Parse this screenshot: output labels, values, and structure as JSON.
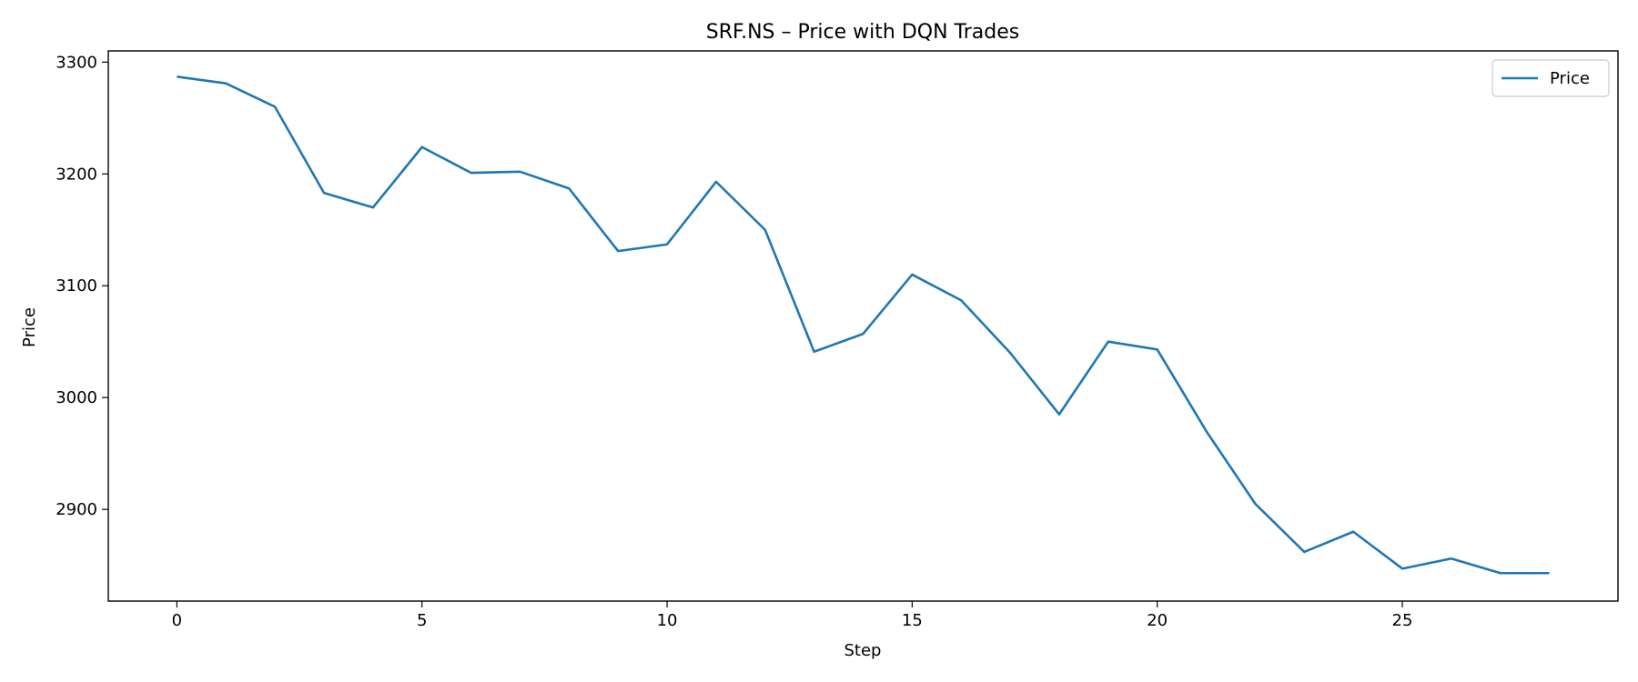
{
  "chart_data": {
    "type": "line",
    "title": "SRF.NS – Price with DQN Trades",
    "xlabel": "Step",
    "ylabel": "Price",
    "xlim": [
      -1.4,
      29.4
    ],
    "ylim": [
      2818,
      3310
    ],
    "xticks": [
      0,
      5,
      10,
      15,
      20,
      25
    ],
    "yticks": [
      2900,
      3000,
      3100,
      3200,
      3300
    ],
    "grid": false,
    "legend_position": "top-right",
    "colors": {
      "Price": "#1f77b4"
    },
    "series": [
      {
        "name": "Price",
        "x": [
          0,
          1,
          2,
          3,
          4,
          5,
          6,
          7,
          8,
          9,
          10,
          11,
          12,
          13,
          14,
          15,
          16,
          17,
          18,
          19,
          20,
          21,
          22,
          23,
          24,
          25,
          26,
          27,
          28
        ],
        "values": [
          3287,
          3281,
          3260,
          3183,
          3170,
          3224,
          3201,
          3202,
          3187,
          3131,
          3137,
          3193,
          3150,
          3041,
          3057,
          3110,
          3087,
          3040,
          2985,
          3050,
          3043,
          2970,
          2905,
          2862,
          2880,
          2847,
          2856,
          2843,
          2843
        ]
      }
    ]
  }
}
